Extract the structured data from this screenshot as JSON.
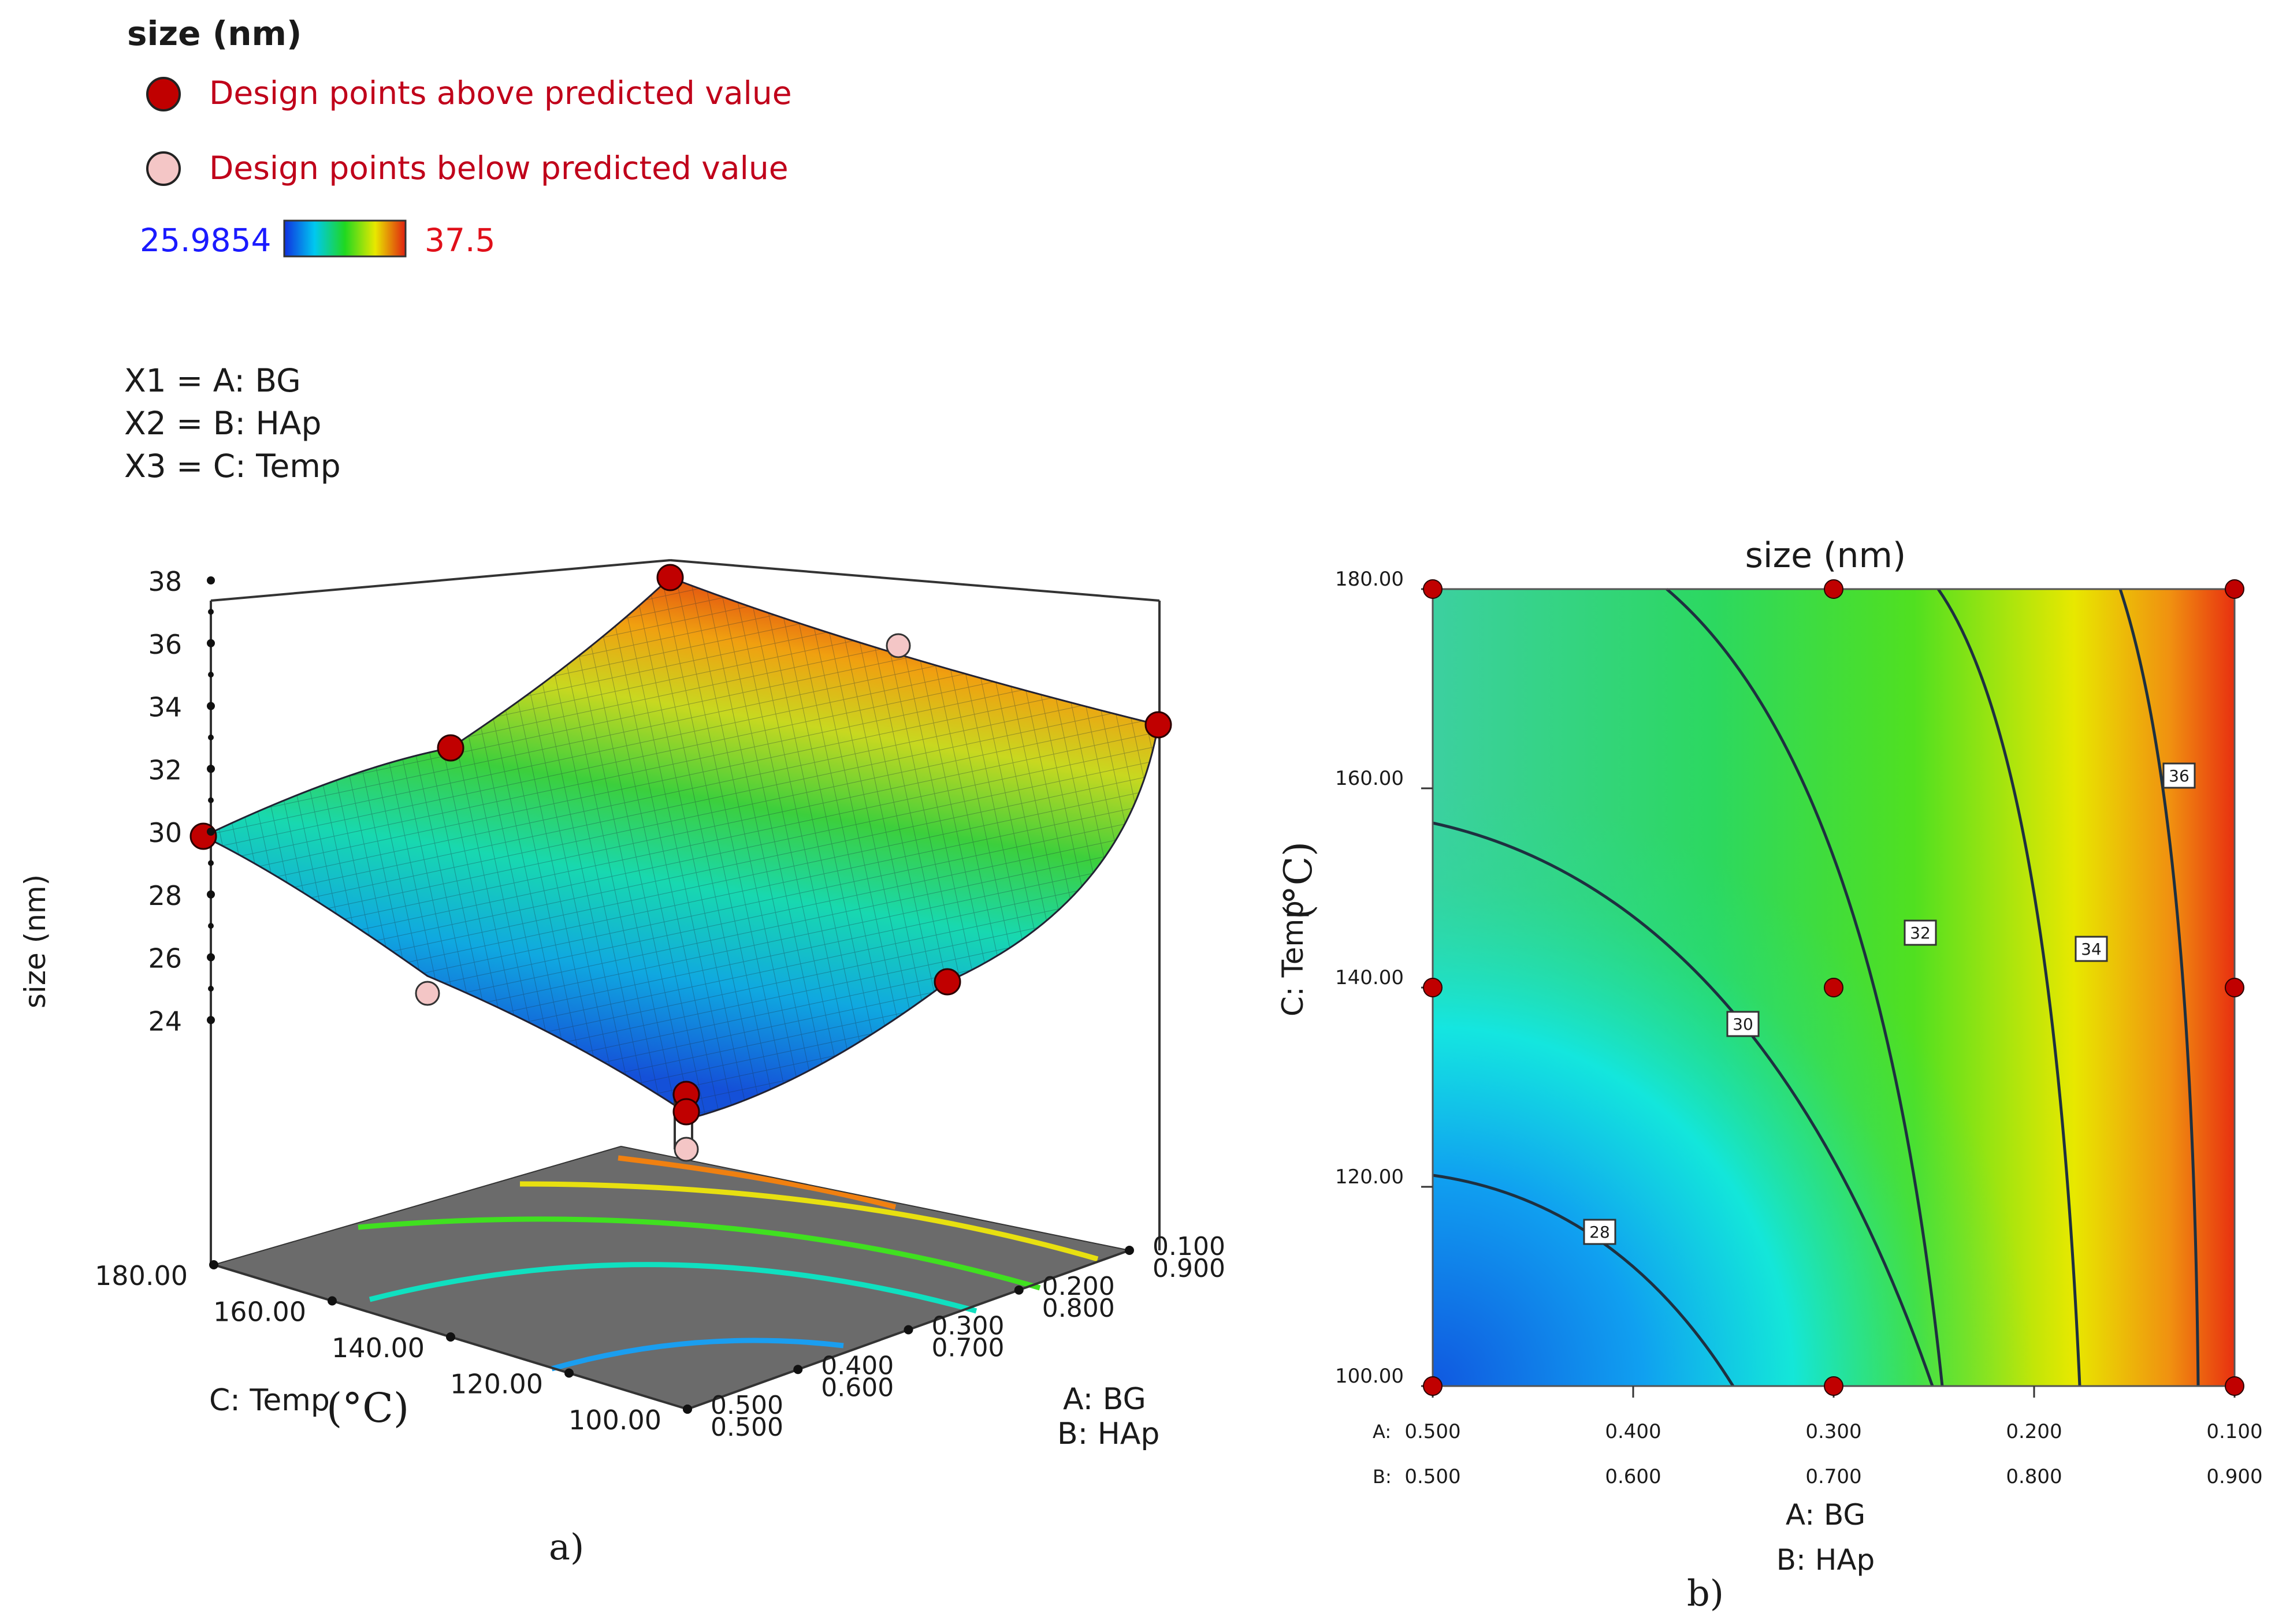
{
  "legend": {
    "title": "size (nm)",
    "above_label": "Design points above predicted value",
    "below_label": "Design points below predicted value",
    "color_min": "25.9854",
    "color_max": "37.5"
  },
  "factors": [
    "X1 = A: BG",
    "X2 = B: HAp",
    "X3 = C: Temp"
  ],
  "colors": {
    "point_above": "#c00000",
    "point_below": "#f4c6c6",
    "label_red": "#c0001a",
    "label_blue": "#1a1aff",
    "floor": "#6b6b6b"
  },
  "chart_data": [
    {
      "type": "surface3d",
      "panel_label": "a)",
      "zlabel": "size (nm)",
      "zticks": [
        "24",
        "26",
        "28",
        "30",
        "32",
        "34",
        "36",
        "38"
      ],
      "zlim": [
        22,
        38
      ],
      "temp_label": "C: Temp",
      "temp_unit": "(°C)",
      "temp_ticks": [
        "100.00",
        "120.00",
        "140.00",
        "160.00",
        "180.00"
      ],
      "ab_label_a": "A: BG",
      "ab_label_b": "B: HAp",
      "a_ticks": [
        "0.500",
        "0.400",
        "0.300",
        "0.200",
        "0.100"
      ],
      "b_ticks": [
        "0.500",
        "0.600",
        "0.700",
        "0.800",
        "0.900"
      ],
      "design_points_above": [
        {
          "a": 0.5,
          "temp": 180,
          "size": 30.8
        },
        {
          "a": 0.1,
          "temp": 180,
          "size": 37.2
        },
        {
          "a": 0.1,
          "temp": 100,
          "size": 33.6
        },
        {
          "a": 0.5,
          "temp": 140,
          "size": 33.0
        },
        {
          "a": 0.1,
          "temp": 140,
          "size": 27.6
        },
        {
          "a": 0.3,
          "temp": 100,
          "size": 24.0
        },
        {
          "a": 0.3,
          "temp": 100,
          "size": 23.6
        }
      ],
      "design_points_below": [
        {
          "a": 0.3,
          "temp": 180,
          "size": 36.2
        },
        {
          "a": 0.5,
          "temp": 100,
          "size": 26.8
        },
        {
          "a": 0.3,
          "temp": 100,
          "size": 22.6
        }
      ]
    },
    {
      "type": "contour",
      "panel_label": "b)",
      "title": "size (nm)",
      "ylabel": "C: Temp",
      "ylabel_unit": "(°C)",
      "xlabel_a": "A: BG",
      "xlabel_b": "B: HAp",
      "x_prefix_a": "A:",
      "x_prefix_b": "B:",
      "a_ticks": [
        "0.500",
        "0.400",
        "0.300",
        "0.200",
        "0.100"
      ],
      "b_ticks": [
        "0.500",
        "0.600",
        "0.700",
        "0.800",
        "0.900"
      ],
      "y_ticks": [
        "100.00",
        "120.00",
        "140.00",
        "160.00",
        "180.00"
      ],
      "xlim": [
        0.5,
        0.1
      ],
      "ylim": [
        100,
        180
      ],
      "contour_levels": [
        "28",
        "30",
        "32",
        "34",
        "36"
      ],
      "design_points": [
        {
          "a": 0.5,
          "temp": 180
        },
        {
          "a": 0.3,
          "temp": 180
        },
        {
          "a": 0.1,
          "temp": 180
        },
        {
          "a": 0.5,
          "temp": 140
        },
        {
          "a": 0.3,
          "temp": 140
        },
        {
          "a": 0.1,
          "temp": 140
        },
        {
          "a": 0.5,
          "temp": 100
        },
        {
          "a": 0.3,
          "temp": 100
        },
        {
          "a": 0.1,
          "temp": 100
        }
      ]
    }
  ]
}
